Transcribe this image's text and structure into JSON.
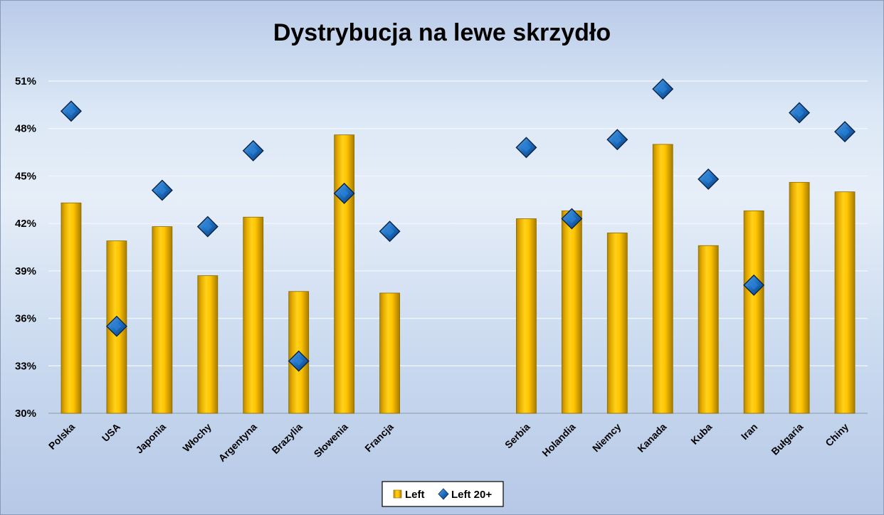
{
  "chart_data": {
    "type": "bar",
    "title": "Dystrybucja na lewe skrzydło",
    "xlabel": "",
    "ylabel": "",
    "ylim": [
      0.3,
      0.51
    ],
    "yticks": [
      "30%",
      "33%",
      "36%",
      "39%",
      "42%",
      "45%",
      "48%",
      "51%"
    ],
    "ytick_values": [
      0.3,
      0.33,
      0.36,
      0.39,
      0.42,
      0.45,
      0.48,
      0.51
    ],
    "grid": true,
    "legend_position": "bottom",
    "categories": [
      "Polska",
      "USA",
      "Japonia",
      "Włochy",
      "Argentyna",
      "Brazylia",
      "Słowenia",
      "Francja",
      "",
      "",
      "Serbia",
      "Holandia",
      "Niemcy",
      "Kanada",
      "Kuba",
      "Iran",
      "Bułgaria",
      "Chiny"
    ],
    "series": [
      {
        "name": "Left",
        "kind": "bar",
        "color": "#FFC000",
        "values": [
          0.433,
          0.409,
          0.418,
          0.387,
          0.424,
          0.377,
          0.476,
          0.376,
          null,
          null,
          0.423,
          0.428,
          0.414,
          0.47,
          0.406,
          0.428,
          0.446,
          0.44
        ]
      },
      {
        "name": "Left 20+",
        "kind": "marker",
        "marker": "diamond",
        "color": "#1F6FC0",
        "values": [
          0.491,
          0.355,
          0.441,
          0.418,
          0.466,
          0.333,
          0.439,
          0.415,
          null,
          null,
          0.468,
          0.423,
          0.473,
          0.505,
          0.448,
          0.381,
          0.49,
          0.478
        ]
      }
    ]
  }
}
